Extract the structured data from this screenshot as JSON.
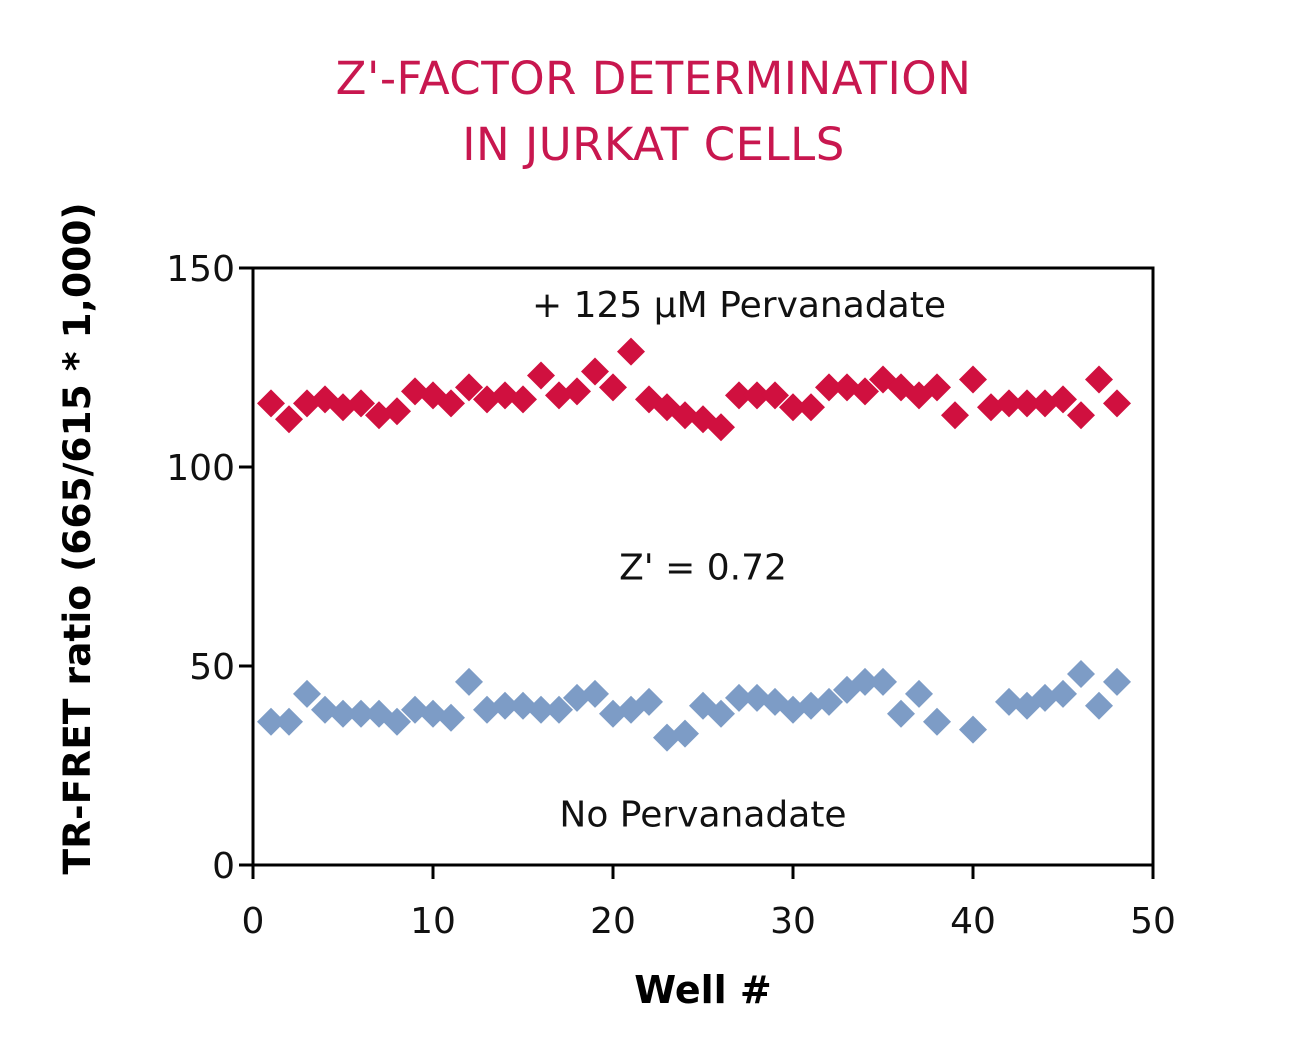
{
  "colors": {
    "title": "#c8174f",
    "series_pervanadate": "#d0103f",
    "series_no_pervanadate": "#7d9cc6",
    "axis": "#000000",
    "text": "#111111"
  },
  "chart_data": {
    "type": "scatter",
    "title": [
      "Z'-FACTOR DETERMINATION",
      "IN JURKAT CELLS"
    ],
    "xlabel": "Well #",
    "ylabel": "TR-FRET ratio (665/615 * 1,000)",
    "xlim": [
      0,
      50
    ],
    "ylim": [
      0,
      150
    ],
    "xticks": [
      0,
      10,
      20,
      30,
      40,
      50
    ],
    "yticks": [
      0,
      50,
      100,
      150
    ],
    "grid": false,
    "marker": "diamond",
    "annotations": [
      {
        "text": "+ 125 µM  Pervanadate",
        "x": 27,
        "y": 141
      },
      {
        "text": "Z' = 0.72",
        "x": 25,
        "y": 75
      },
      {
        "text": "No Pervanadate",
        "x": 25,
        "y": 13
      }
    ],
    "series": [
      {
        "x": [
          1,
          2,
          3,
          4,
          5,
          6,
          7,
          8,
          9,
          10,
          11,
          12,
          13,
          14,
          15,
          16,
          17,
          18,
          19,
          20,
          21,
          22,
          23,
          24,
          25,
          26,
          27,
          28,
          29,
          30,
          31,
          32,
          33,
          34,
          35,
          36,
          37,
          38,
          39,
          40,
          41,
          42,
          43,
          44,
          45,
          46,
          47,
          48
        ],
        "y": [
          116,
          112,
          116,
          117,
          115,
          116,
          113,
          114,
          119,
          118,
          116,
          120,
          117,
          118,
          117,
          123,
          118,
          119,
          124,
          120,
          129,
          117,
          115,
          113,
          112,
          110,
          118,
          118,
          118,
          115,
          115,
          120,
          120,
          119,
          122,
          120,
          118,
          120,
          113,
          122,
          115,
          116,
          116,
          116,
          117,
          113,
          122,
          116
        ]
      },
      {
        "x": [
          1,
          2,
          3,
          4,
          5,
          6,
          7,
          8,
          9,
          10,
          11,
          12,
          13,
          14,
          15,
          16,
          17,
          18,
          19,
          20,
          21,
          22,
          23,
          24,
          25,
          26,
          27,
          28,
          29,
          30,
          31,
          32,
          33,
          34,
          35,
          36,
          37,
          38,
          39,
          40,
          41,
          42,
          43,
          44,
          45,
          46,
          47,
          48
        ],
        "y": [
          36,
          36,
          43,
          39,
          38,
          38,
          38,
          36,
          39,
          38,
          37,
          46,
          39,
          40,
          40,
          39,
          39,
          42,
          43,
          38,
          39,
          41,
          32,
          33,
          40,
          38,
          42,
          42,
          41,
          39,
          40,
          41,
          44,
          46,
          46,
          38,
          43,
          36,
          null,
          34,
          null,
          41,
          40,
          42,
          43,
          48,
          40,
          46
        ]
      }
    ]
  }
}
